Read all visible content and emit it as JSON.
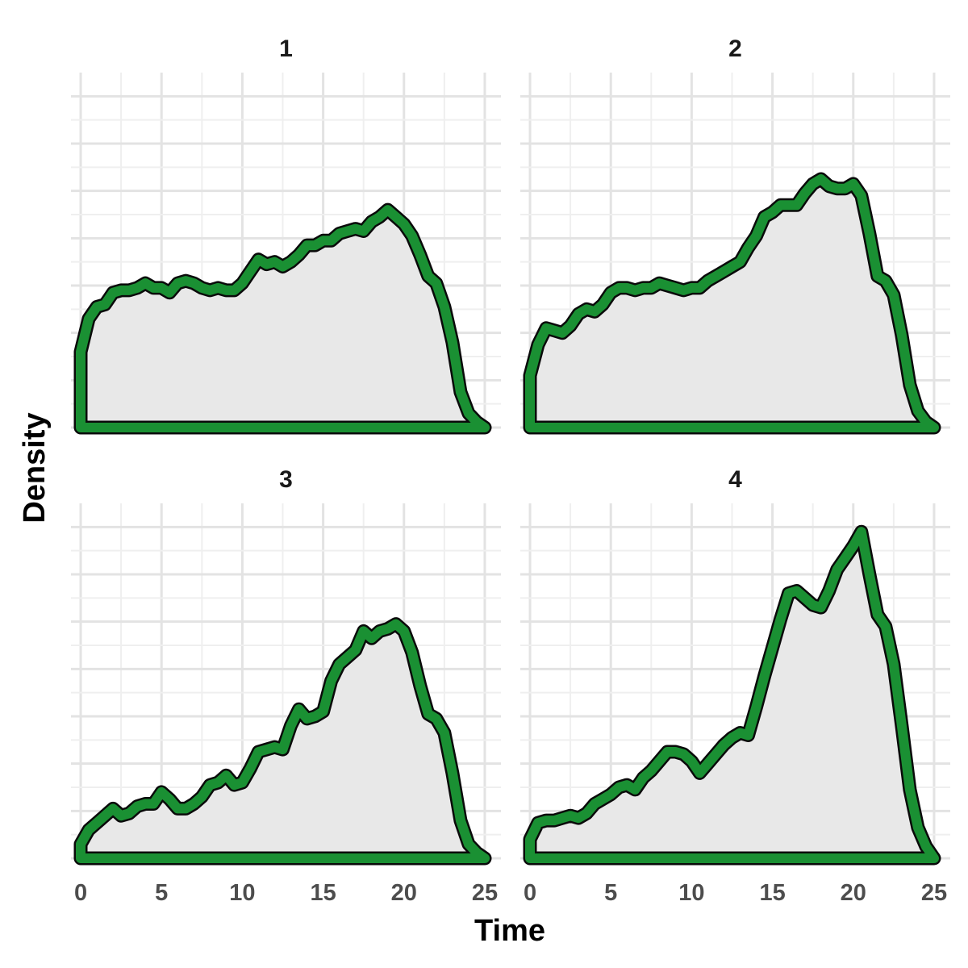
{
  "chart_data": {
    "type": "area",
    "xlabel": "Time",
    "ylabel": "Density",
    "xlim": [
      -0.6,
      26
    ],
    "ylim": [
      0,
      0.075
    ],
    "x_ticks": [
      0,
      5,
      10,
      15,
      20,
      25
    ],
    "grid": true,
    "legend": "none",
    "colors": {
      "fill": "#e8e8e8",
      "outline": "#1a9033",
      "outline_edge": "#0a0a0a",
      "grid": "#e3e3e3",
      "background": "#ffffff"
    },
    "panels": [
      {
        "title": "1",
        "x": [
          0,
          0.5,
          1,
          1.5,
          2,
          2.5,
          3,
          3.5,
          4,
          4.5,
          5,
          5.5,
          6,
          6.5,
          7,
          7.5,
          8,
          8.5,
          9,
          9.5,
          10,
          10.5,
          11,
          11.5,
          12,
          12.5,
          13,
          13.5,
          14,
          14.5,
          15,
          15.5,
          16,
          16.5,
          17,
          17.5,
          18,
          18.5,
          19,
          19.5,
          20,
          20.5,
          21,
          21.5,
          22,
          22.5,
          23,
          23.5,
          24,
          24.5,
          25
        ],
        "y": [
          0.016,
          0.023,
          0.0255,
          0.026,
          0.0285,
          0.029,
          0.029,
          0.0295,
          0.0305,
          0.0295,
          0.0295,
          0.0285,
          0.0305,
          0.031,
          0.0305,
          0.0295,
          0.029,
          0.0295,
          0.029,
          0.029,
          0.0305,
          0.033,
          0.0355,
          0.0345,
          0.035,
          0.034,
          0.035,
          0.0365,
          0.0385,
          0.0385,
          0.0395,
          0.0395,
          0.041,
          0.0415,
          0.042,
          0.0415,
          0.0435,
          0.0445,
          0.046,
          0.0445,
          0.043,
          0.0405,
          0.0365,
          0.032,
          0.0305,
          0.0255,
          0.018,
          0.0075,
          0.003,
          0.0012,
          0
        ]
      },
      {
        "title": "2",
        "x": [
          0,
          0.5,
          1,
          1.5,
          2,
          2.5,
          3,
          3.5,
          4,
          4.5,
          5,
          5.5,
          6,
          6.5,
          7,
          7.5,
          8,
          8.5,
          9,
          9.5,
          10,
          10.5,
          11,
          11.5,
          12,
          12.5,
          13,
          13.5,
          14,
          14.5,
          15,
          15.5,
          16,
          16.5,
          17,
          17.5,
          18,
          18.5,
          19,
          19.5,
          20,
          20.5,
          21,
          21.5,
          22,
          22.5,
          23,
          23.5,
          24,
          24.5,
          25
        ],
        "y": [
          0.011,
          0.0175,
          0.021,
          0.0205,
          0.02,
          0.0215,
          0.024,
          0.025,
          0.0245,
          0.026,
          0.0285,
          0.0295,
          0.0295,
          0.029,
          0.0295,
          0.0295,
          0.0305,
          0.03,
          0.0295,
          0.029,
          0.0295,
          0.0295,
          0.031,
          0.032,
          0.033,
          0.034,
          0.035,
          0.038,
          0.0405,
          0.0445,
          0.0455,
          0.047,
          0.047,
          0.047,
          0.0495,
          0.0515,
          0.0525,
          0.051,
          0.0505,
          0.0505,
          0.0515,
          0.049,
          0.041,
          0.032,
          0.031,
          0.028,
          0.0195,
          0.009,
          0.0035,
          0.0012,
          0
        ]
      },
      {
        "title": "3",
        "x": [
          0,
          0.5,
          1,
          1.5,
          2,
          2.5,
          3,
          3.5,
          4,
          4.5,
          5,
          5.5,
          6,
          6.5,
          7,
          7.5,
          8,
          8.5,
          9,
          9.5,
          10,
          10.5,
          11,
          11.5,
          12,
          12.5,
          13,
          13.5,
          14,
          14.5,
          15,
          15.5,
          16,
          16.5,
          17,
          17.5,
          18,
          18.5,
          19,
          19.5,
          20,
          20.5,
          21,
          21.5,
          22,
          22.5,
          23,
          23.5,
          24,
          24.5,
          25
        ],
        "y": [
          0.003,
          0.006,
          0.0075,
          0.009,
          0.0105,
          0.009,
          0.0095,
          0.011,
          0.0115,
          0.0115,
          0.014,
          0.0125,
          0.0105,
          0.0105,
          0.0115,
          0.013,
          0.0155,
          0.016,
          0.0175,
          0.0155,
          0.016,
          0.019,
          0.0225,
          0.023,
          0.0235,
          0.023,
          0.028,
          0.0315,
          0.0295,
          0.03,
          0.031,
          0.0375,
          0.041,
          0.0425,
          0.044,
          0.048,
          0.0465,
          0.048,
          0.0485,
          0.0495,
          0.048,
          0.0435,
          0.0365,
          0.0305,
          0.0295,
          0.0265,
          0.018,
          0.008,
          0.003,
          0.0012,
          0
        ]
      },
      {
        "title": "4",
        "x": [
          0,
          0.5,
          1,
          1.5,
          2,
          2.5,
          3,
          3.5,
          4,
          4.5,
          5,
          5.5,
          6,
          6.5,
          7,
          7.5,
          8,
          8.5,
          9,
          9.5,
          10,
          10.5,
          11,
          11.5,
          12,
          12.5,
          13,
          13.5,
          14,
          14.5,
          15,
          15.5,
          16,
          16.5,
          17,
          17.5,
          18,
          18.5,
          19,
          19.5,
          20,
          20.5,
          21,
          21.5,
          22,
          22.5,
          23,
          23.5,
          24,
          24.5,
          25
        ],
        "y": [
          0.004,
          0.0075,
          0.008,
          0.008,
          0.0085,
          0.009,
          0.0085,
          0.0095,
          0.0115,
          0.0125,
          0.0135,
          0.015,
          0.0155,
          0.0145,
          0.017,
          0.0185,
          0.0205,
          0.0225,
          0.0225,
          0.022,
          0.0205,
          0.018,
          0.02,
          0.022,
          0.024,
          0.0255,
          0.0265,
          0.026,
          0.032,
          0.0385,
          0.0445,
          0.0505,
          0.056,
          0.0565,
          0.055,
          0.0535,
          0.053,
          0.0565,
          0.061,
          0.0635,
          0.066,
          0.069,
          0.06,
          0.0515,
          0.049,
          0.041,
          0.028,
          0.0145,
          0.0065,
          0.0025,
          0
        ]
      }
    ]
  }
}
